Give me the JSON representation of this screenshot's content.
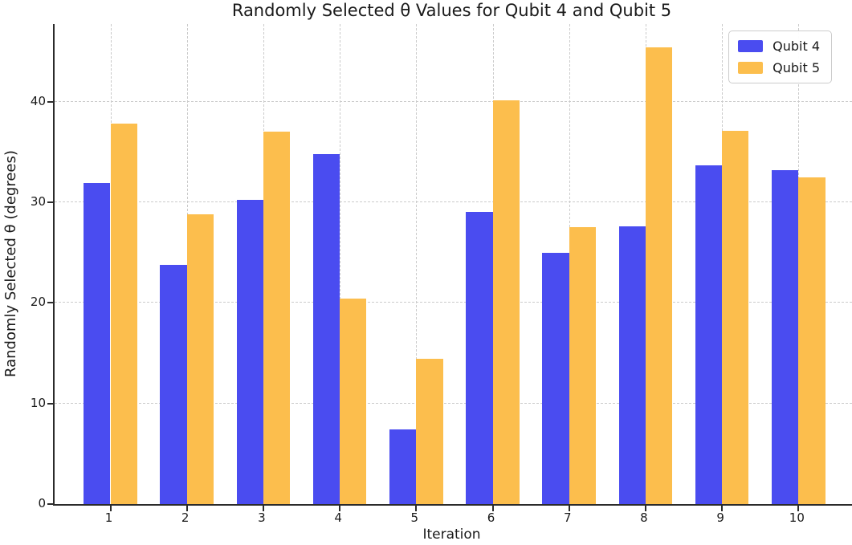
{
  "chart_data": {
    "type": "bar",
    "title": "Randomly Selected θ Values for Qubit 4 and Qubit 5",
    "xlabel": "Iteration",
    "ylabel": "Randomly Selected θ (degrees)",
    "categories": [
      "1",
      "2",
      "3",
      "4",
      "5",
      "6",
      "7",
      "8",
      "9",
      "10"
    ],
    "series": [
      {
        "name": "Qubit 4",
        "color": "#4a4cf0",
        "values": [
          31.9,
          23.8,
          30.2,
          34.8,
          7.4,
          29.0,
          25.0,
          27.6,
          33.7,
          33.2
        ]
      },
      {
        "name": "Qubit 5",
        "color": "#fcbe4d",
        "values": [
          37.8,
          28.8,
          37.0,
          20.4,
          14.4,
          40.1,
          27.5,
          45.4,
          37.1,
          32.5
        ]
      }
    ],
    "ylim": [
      0,
      47.7
    ],
    "xlim": [
      0.27,
      10.7
    ],
    "yticks": [
      0,
      10,
      20,
      30,
      40
    ],
    "bar_width_units": 0.35,
    "grid": "dashed",
    "grid_color": "#cbcbcb",
    "axis_color": "#2b2b2b",
    "legend_position": "upper right"
  }
}
